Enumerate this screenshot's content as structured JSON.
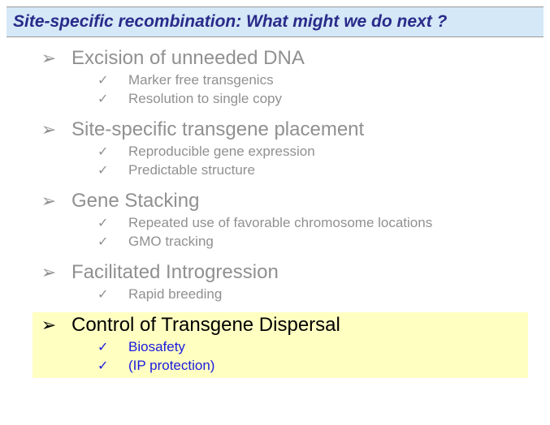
{
  "colors": {
    "title_bg": "#d4e8f7",
    "title_text": "#2a2a8a",
    "dim_text": "#909090",
    "dim_sub_text": "#909090",
    "highlight_bg": "#ffffc2",
    "highlight_main_text": "#000000",
    "highlight_sub_text": "#1a1adf",
    "chevron_dim": "#909090",
    "chevron_active": "#000000",
    "check_dim": "#909090",
    "check_active": "#1a1adf"
  },
  "title": "Site-specific recombination: What might we do next ?",
  "sections": [
    {
      "label": "Excision of unneeded DNA",
      "highlighted": false,
      "subs": [
        "Marker free transgenics",
        "Resolution to single copy"
      ]
    },
    {
      "label": "Site-specific transgene placement",
      "highlighted": false,
      "subs": [
        "Reproducible gene expression",
        "Predictable structure"
      ]
    },
    {
      "label": "Gene Stacking",
      "highlighted": false,
      "subs": [
        "Repeated use of favorable chromosome locations",
        "GMO tracking"
      ]
    },
    {
      "label": "Facilitated Introgression",
      "highlighted": false,
      "subs": [
        "Rapid breeding"
      ]
    },
    {
      "label": "Control of Transgene Dispersal",
      "highlighted": true,
      "subs": [
        "Biosafety",
        "(IP protection)"
      ]
    }
  ]
}
